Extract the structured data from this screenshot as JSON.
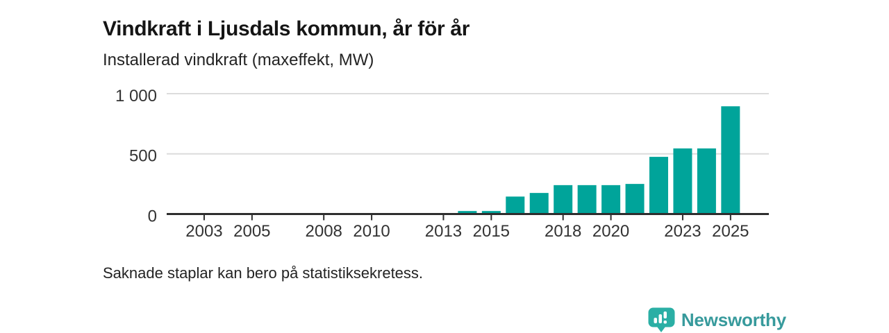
{
  "page_title": "Vindkraft i Ljusdals kommun, år för år",
  "subtitle": "Installerad vindkraft (maxeffekt, MW)",
  "footnote": "Saknade staplar kan bero på statistiksekretess.",
  "branding": {
    "wordmark": "Newsworthy",
    "icon": "newsworthy-bubble-chart-icon",
    "icon_color": "#2bafa5",
    "wordmark_color": "#379a9c"
  },
  "colors": {
    "bar": "#00a49a",
    "axis": "#2e2e2e",
    "grid": "#dcdcdc",
    "tick_label": "#333333"
  },
  "chart_data": {
    "type": "bar",
    "title": "Vindkraft i Ljusdals kommun, år för år",
    "subtitle": "Installerad vindkraft (maxeffekt, MW)",
    "ylabel": "Installerad vindkraft (maxeffekt, MW)",
    "xlabel": "",
    "unit": "MW",
    "years": [
      2002,
      2003,
      2004,
      2005,
      2006,
      2007,
      2008,
      2009,
      2010,
      2011,
      2012,
      2013,
      2014,
      2015,
      2016,
      2017,
      2018,
      2019,
      2020,
      2021,
      2022,
      2023,
      2024,
      2025
    ],
    "values": [
      null,
      null,
      null,
      null,
      null,
      null,
      null,
      null,
      null,
      null,
      null,
      null,
      25,
      25,
      145,
      175,
      240,
      240,
      240,
      250,
      475,
      545,
      545,
      895
    ],
    "xticks": [
      2003,
      2005,
      2008,
      2010,
      2013,
      2015,
      2018,
      2020,
      2023,
      2025
    ],
    "ytick_values": [
      0,
      500,
      1000
    ],
    "ytick_labels": [
      "0",
      "500",
      "1 000"
    ],
    "ylim": [
      0,
      1000
    ],
    "grid": "horizontal-only",
    "legend": "none",
    "missing_note": "Saknade staplar kan bero på statistiksekretess."
  }
}
